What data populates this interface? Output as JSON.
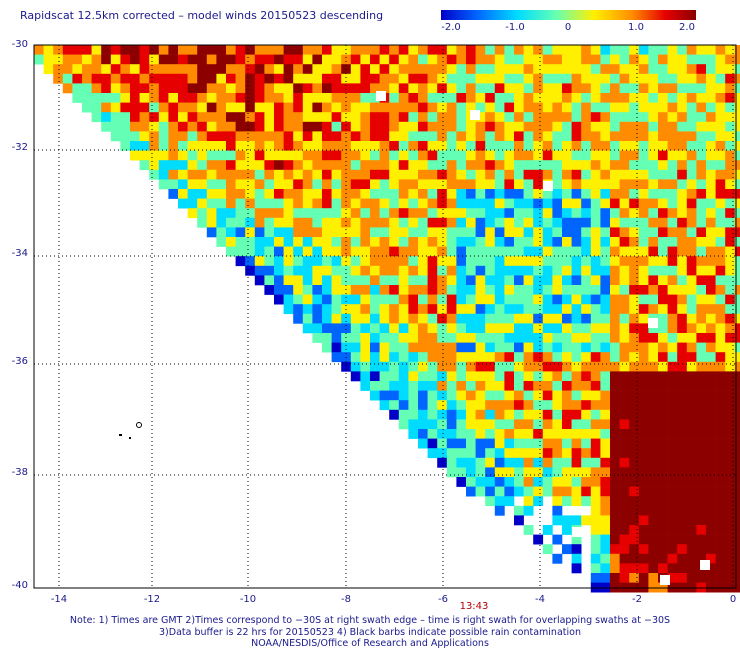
{
  "title": "Rapidscat 12.5km corrected – model winds 20150523 descending",
  "colorbar": {
    "labels": [
      "-2.0",
      "-1.0",
      "0",
      "1.0",
      "2.0"
    ],
    "range": [
      -2.0,
      2.0
    ],
    "colors": [
      "#0000c8",
      "#0064ff",
      "#00dcff",
      "#64ffb4",
      "#fff000",
      "#ff8c00",
      "#e60000",
      "#8c0000"
    ]
  },
  "map": {
    "lat_range": [
      -40,
      -30
    ],
    "lon_range": [
      -15,
      0
    ],
    "y_ticks": [
      "-30",
      "-32",
      "-34",
      "-36",
      "-38",
      "-40"
    ],
    "x_ticks": [
      "-14",
      "-12",
      "-10",
      "-8",
      "-6",
      "-4",
      "-2",
      "0"
    ],
    "gridlines": "dotted",
    "swath_time": "13:43",
    "land_color": "#000000",
    "gap_color": "#ffffff"
  },
  "notes": [
    "Note: 1) Times are GMT 2)Times correspond to −30S at right swath edge – time is right swath for overlapping swaths at −30S",
    "3)Data buffer is 22 hrs for 20150523 4) Black barbs indicate possible rain contamination",
    "NOAA/NESDIS/Office of Research and Applications"
  ]
}
